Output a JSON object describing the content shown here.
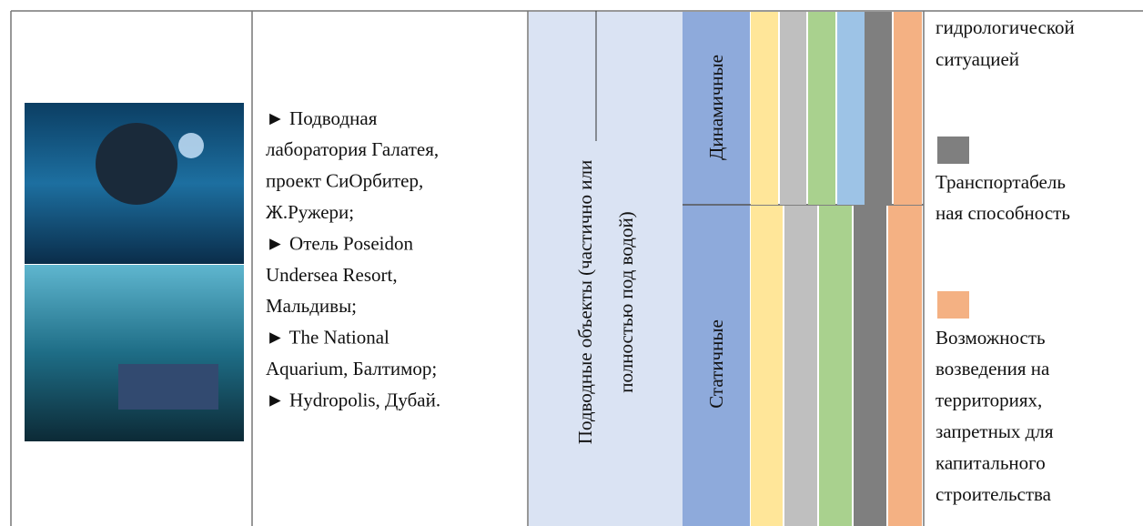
{
  "objects_text": [
    "► Подводная",
    "лаборатория Галатея,",
    "проект СиОрбитер,",
    "Ж.Ружери;",
    "► Отель Poseidon",
    "Undersea Resort,",
    "Мальдивы;",
    "► The National",
    "Aquarium, Балтимор;",
    "► Hydropolis, Дубай."
  ],
  "category": [
    "Подводные объекты (частично или",
    "полностью под водой)"
  ],
  "subcategories": [
    "Динамичные",
    "Статичные"
  ],
  "legend": {
    "continuation": [
      "гидрологической",
      "ситуацией"
    ],
    "items": [
      [
        "Транспортабель",
        "ная способность"
      ],
      [
        "Возможность",
        "возведения на",
        "территориях,",
        "запретных для",
        "капитального",
        "строительства"
      ]
    ]
  }
}
